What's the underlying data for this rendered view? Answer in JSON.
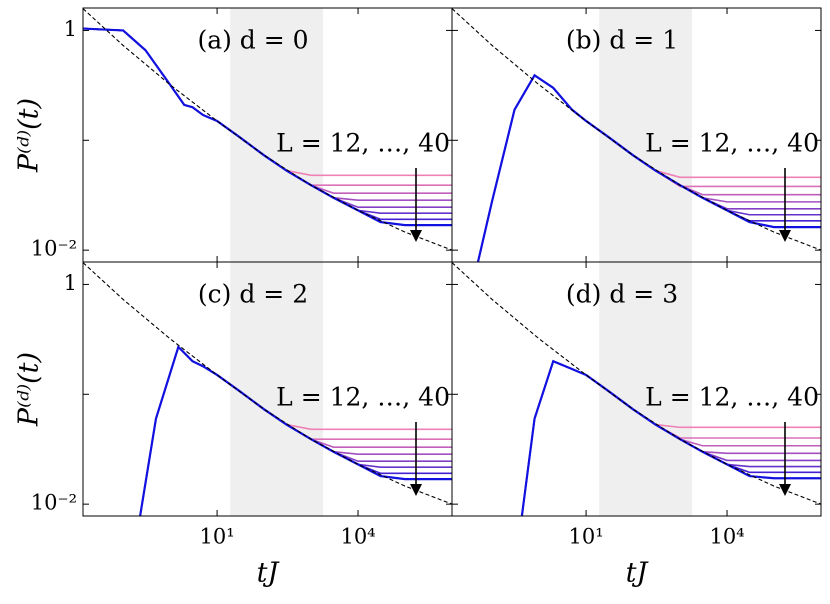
{
  "chart_data": [
    {
      "type": "line",
      "title": "(a) d = 0",
      "annotation": "L = 12, …, 40",
      "ylabel": "P⁽ᵈ⁾(t)",
      "log_x": true,
      "log_y": true,
      "xlim": [
        0.014,
        1000000
      ],
      "ylim": [
        0.0078,
        1.6
      ],
      "xticks": [
        {
          "value": 10,
          "label": null
        },
        {
          "value": 10000,
          "label": null
        }
      ],
      "yticks": [
        1,
        {
          "value": 0.1,
          "label": null
        },
        {
          "value": 0.01,
          "label": "10⁻²"
        }
      ],
      "shade": [
        19,
        1800
      ],
      "shade_color": "#efefef",
      "reference": {
        "x": [
          0.014,
          0.1,
          1,
          10,
          100,
          1000,
          10000,
          100000,
          1000000
        ],
        "values": [
          1.58,
          0.73,
          0.32,
          0.15,
          0.073,
          0.039,
          0.023,
          0.0146,
          0.01
        ],
        "color": "#000000"
      },
      "x": [
        0.014,
        0.1,
        0.3,
        1,
        2,
        3,
        5,
        10,
        30,
        100,
        300,
        1000,
        3000,
        10000,
        30000,
        100000,
        1000000
      ],
      "series": [
        {
          "color": "#ee82b4",
          "values": [
            1.04,
            1.0,
            0.66,
            0.32,
            0.21,
            0.2,
            0.17,
            0.15,
            0.107,
            0.073,
            0.053,
            0.048,
            0.048,
            0.048,
            0.048,
            0.048,
            0.048
          ]
        },
        {
          "color": "#dc70b8",
          "values": [
            1.04,
            1.0,
            0.66,
            0.32,
            0.21,
            0.2,
            0.17,
            0.15,
            0.107,
            0.073,
            0.053,
            0.039,
            0.039,
            0.039,
            0.039,
            0.039,
            0.039
          ]
        },
        {
          "color": "#c05fbb",
          "values": [
            1.04,
            1.0,
            0.66,
            0.32,
            0.21,
            0.2,
            0.17,
            0.15,
            0.107,
            0.073,
            0.053,
            0.039,
            0.033,
            0.033,
            0.033,
            0.033,
            0.033
          ]
        },
        {
          "color": "#a34fc0",
          "values": [
            1.04,
            1.0,
            0.66,
            0.32,
            0.21,
            0.2,
            0.17,
            0.15,
            0.107,
            0.073,
            0.053,
            0.039,
            0.03,
            0.0285,
            0.0285,
            0.0285,
            0.0285
          ]
        },
        {
          "color": "#8540c6",
          "values": [
            1.04,
            1.0,
            0.66,
            0.32,
            0.21,
            0.2,
            0.17,
            0.15,
            0.107,
            0.073,
            0.053,
            0.039,
            0.03,
            0.0246,
            0.0246,
            0.0246,
            0.0246
          ]
        },
        {
          "color": "#6631cc",
          "values": [
            1.04,
            1.0,
            0.66,
            0.32,
            0.21,
            0.2,
            0.17,
            0.15,
            0.107,
            0.073,
            0.053,
            0.039,
            0.03,
            0.023,
            0.0217,
            0.0217,
            0.0217
          ]
        },
        {
          "color": "#4422d4",
          "values": [
            1.04,
            1.0,
            0.66,
            0.32,
            0.21,
            0.2,
            0.17,
            0.15,
            0.107,
            0.073,
            0.053,
            0.039,
            0.03,
            0.023,
            0.0191,
            0.0191,
            0.0191
          ]
        },
        {
          "color": "#1212e0",
          "values": [
            1.04,
            1.0,
            0.66,
            0.32,
            0.21,
            0.2,
            0.17,
            0.15,
            0.107,
            0.073,
            0.053,
            0.039,
            0.03,
            0.023,
            0.018,
            0.0169,
            0.0169
          ]
        }
      ]
    },
    {
      "type": "line",
      "title": "(b) d = 1",
      "annotation": "L = 12, …, 40",
      "log_x": true,
      "log_y": true,
      "xlim": [
        0.014,
        1000000
      ],
      "ylim": [
        0.0078,
        1.6
      ],
      "xticks": [
        {
          "value": 10,
          "label": null
        },
        {
          "value": 10000,
          "label": null
        }
      ],
      "yticks": [
        {
          "value": 1,
          "label": null
        },
        {
          "value": 0.1,
          "label": null
        },
        {
          "value": 0.01,
          "label": null
        }
      ],
      "shade": [
        19,
        1800
      ],
      "shade_color": "#efefef",
      "reference": {
        "x": [
          0.014,
          0.1,
          1,
          10,
          100,
          1000,
          10000,
          100000,
          1000000
        ],
        "values": [
          1.58,
          0.73,
          0.32,
          0.15,
          0.073,
          0.039,
          0.023,
          0.0146,
          0.01
        ],
        "color": "#000000"
      },
      "x": [
        0.05,
        0.1,
        0.3,
        0.8,
        2,
        5,
        10,
        30,
        100,
        300,
        1000,
        3000,
        10000,
        30000,
        100000,
        1000000
      ],
      "series": [
        {
          "color": "#ee82b4",
          "values": [
            0.0078,
            0.028,
            0.19,
            0.39,
            0.3,
            0.19,
            0.15,
            0.107,
            0.073,
            0.053,
            0.046,
            0.046,
            0.046,
            0.046,
            0.046,
            0.046
          ]
        },
        {
          "color": "#dc70b8",
          "values": [
            0.0078,
            0.028,
            0.19,
            0.39,
            0.3,
            0.19,
            0.15,
            0.107,
            0.073,
            0.053,
            0.038,
            0.038,
            0.038,
            0.038,
            0.038,
            0.038
          ]
        },
        {
          "color": "#c05fbb",
          "values": [
            0.0078,
            0.028,
            0.19,
            0.39,
            0.3,
            0.19,
            0.15,
            0.107,
            0.073,
            0.053,
            0.039,
            0.032,
            0.032,
            0.032,
            0.032,
            0.032
          ]
        },
        {
          "color": "#a34fc0",
          "values": [
            0.0078,
            0.028,
            0.19,
            0.39,
            0.3,
            0.19,
            0.15,
            0.107,
            0.073,
            0.053,
            0.039,
            0.03,
            0.0275,
            0.0275,
            0.0275,
            0.0275
          ]
        },
        {
          "color": "#8540c6",
          "values": [
            0.0078,
            0.028,
            0.19,
            0.39,
            0.3,
            0.19,
            0.15,
            0.107,
            0.073,
            0.053,
            0.039,
            0.03,
            0.0238,
            0.0238,
            0.0238,
            0.0238
          ]
        },
        {
          "color": "#6631cc",
          "values": [
            0.0078,
            0.028,
            0.19,
            0.39,
            0.3,
            0.19,
            0.15,
            0.107,
            0.073,
            0.053,
            0.039,
            0.03,
            0.023,
            0.021,
            0.021,
            0.021
          ]
        },
        {
          "color": "#4422d4",
          "values": [
            0.0078,
            0.028,
            0.19,
            0.39,
            0.3,
            0.19,
            0.15,
            0.107,
            0.073,
            0.053,
            0.039,
            0.03,
            0.023,
            0.0185,
            0.0185,
            0.0185
          ]
        },
        {
          "color": "#1212e0",
          "values": [
            0.0078,
            0.028,
            0.19,
            0.39,
            0.3,
            0.19,
            0.15,
            0.107,
            0.073,
            0.053,
            0.039,
            0.03,
            0.023,
            0.018,
            0.0162,
            0.0162
          ]
        }
      ]
    },
    {
      "type": "line",
      "title": "(c) d = 2",
      "annotation": "L = 12, …, 40",
      "ylabel": "P⁽ᵈ⁾(t)",
      "xlabel": "tJ",
      "log_x": true,
      "log_y": true,
      "xlim": [
        0.014,
        1000000
      ],
      "ylim": [
        0.0078,
        1.6
      ],
      "xticks": [
        {
          "value": 10,
          "label": "10¹"
        },
        {
          "value": 10000,
          "label": "10⁴"
        }
      ],
      "yticks": [
        1,
        {
          "value": 0.1,
          "label": null
        },
        {
          "value": 0.01,
          "label": "10⁻²"
        }
      ],
      "shade": [
        19,
        1800
      ],
      "shade_color": "#efefef",
      "reference": {
        "x": [
          0.014,
          0.1,
          1,
          10,
          100,
          1000,
          10000,
          100000,
          1000000
        ],
        "values": [
          1.58,
          0.73,
          0.32,
          0.15,
          0.073,
          0.039,
          0.023,
          0.0146,
          0.01
        ],
        "color": "#000000"
      },
      "x": [
        0.23,
        0.5,
        1.5,
        3,
        5,
        10,
        30,
        100,
        300,
        1000,
        3000,
        10000,
        30000,
        100000,
        1000000
      ],
      "series": [
        {
          "color": "#ee82b4",
          "values": [
            0.0078,
            0.06,
            0.27,
            0.2,
            0.18,
            0.15,
            0.107,
            0.073,
            0.053,
            0.048,
            0.048,
            0.048,
            0.048,
            0.048,
            0.048
          ]
        },
        {
          "color": "#dc70b8",
          "values": [
            0.0078,
            0.06,
            0.27,
            0.2,
            0.18,
            0.15,
            0.107,
            0.073,
            0.053,
            0.039,
            0.039,
            0.039,
            0.039,
            0.039,
            0.039
          ]
        },
        {
          "color": "#c05fbb",
          "values": [
            0.0078,
            0.06,
            0.27,
            0.2,
            0.18,
            0.15,
            0.107,
            0.073,
            0.053,
            0.039,
            0.033,
            0.033,
            0.033,
            0.033,
            0.033
          ]
        },
        {
          "color": "#a34fc0",
          "values": [
            0.0078,
            0.06,
            0.27,
            0.2,
            0.18,
            0.15,
            0.107,
            0.073,
            0.053,
            0.039,
            0.03,
            0.0285,
            0.0285,
            0.0285,
            0.0285
          ]
        },
        {
          "color": "#8540c6",
          "values": [
            0.0078,
            0.06,
            0.27,
            0.2,
            0.18,
            0.15,
            0.107,
            0.073,
            0.053,
            0.039,
            0.03,
            0.0246,
            0.0246,
            0.0246,
            0.0246
          ]
        },
        {
          "color": "#6631cc",
          "values": [
            0.0078,
            0.06,
            0.27,
            0.2,
            0.18,
            0.15,
            0.107,
            0.073,
            0.053,
            0.039,
            0.03,
            0.023,
            0.0217,
            0.0217,
            0.0217
          ]
        },
        {
          "color": "#4422d4",
          "values": [
            0.0078,
            0.06,
            0.27,
            0.2,
            0.18,
            0.15,
            0.107,
            0.073,
            0.053,
            0.039,
            0.03,
            0.023,
            0.0191,
            0.0191,
            0.0191
          ]
        },
        {
          "color": "#1212e0",
          "values": [
            0.0078,
            0.06,
            0.27,
            0.2,
            0.18,
            0.15,
            0.107,
            0.073,
            0.053,
            0.039,
            0.03,
            0.023,
            0.018,
            0.0169,
            0.0169
          ]
        }
      ]
    },
    {
      "type": "line",
      "title": "(d) d = 3",
      "annotation": "L = 12, …, 40",
      "xlabel": "tJ",
      "log_x": true,
      "log_y": true,
      "xlim": [
        0.014,
        1000000
      ],
      "ylim": [
        0.0078,
        1.6
      ],
      "xticks": [
        {
          "value": 10,
          "label": "10¹"
        },
        {
          "value": 10000,
          "label": "10⁴"
        }
      ],
      "yticks": [
        {
          "value": 1,
          "label": null
        },
        {
          "value": 0.1,
          "label": null
        },
        {
          "value": 0.01,
          "label": null
        }
      ],
      "shade": [
        19,
        1800
      ],
      "shade_color": "#efefef",
      "reference": {
        "x": [
          0.014,
          0.1,
          1,
          10,
          100,
          1000,
          10000,
          100000,
          1000000
        ],
        "values": [
          1.58,
          0.73,
          0.32,
          0.15,
          0.073,
          0.039,
          0.023,
          0.0146,
          0.01
        ],
        "color": "#000000"
      },
      "x": [
        0.43,
        0.8,
        2,
        5,
        10,
        30,
        100,
        300,
        1000,
        3000,
        10000,
        30000,
        100000,
        1000000
      ],
      "series": [
        {
          "color": "#ee82b4",
          "values": [
            0.0078,
            0.06,
            0.2,
            0.17,
            0.15,
            0.107,
            0.073,
            0.053,
            0.05,
            0.05,
            0.05,
            0.05,
            0.05,
            0.05
          ]
        },
        {
          "color": "#dc70b8",
          "values": [
            0.0078,
            0.06,
            0.2,
            0.17,
            0.15,
            0.107,
            0.073,
            0.053,
            0.04,
            0.04,
            0.04,
            0.04,
            0.04,
            0.04
          ]
        },
        {
          "color": "#c05fbb",
          "values": [
            0.0078,
            0.06,
            0.2,
            0.17,
            0.15,
            0.107,
            0.073,
            0.053,
            0.039,
            0.034,
            0.034,
            0.034,
            0.034,
            0.034
          ]
        },
        {
          "color": "#a34fc0",
          "values": [
            0.0078,
            0.06,
            0.2,
            0.17,
            0.15,
            0.107,
            0.073,
            0.053,
            0.039,
            0.03,
            0.029,
            0.029,
            0.029,
            0.029
          ]
        },
        {
          "color": "#8540c6",
          "values": [
            0.0078,
            0.06,
            0.2,
            0.17,
            0.15,
            0.107,
            0.073,
            0.053,
            0.039,
            0.03,
            0.025,
            0.025,
            0.025,
            0.025
          ]
        },
        {
          "color": "#6631cc",
          "values": [
            0.0078,
            0.06,
            0.2,
            0.17,
            0.15,
            0.107,
            0.073,
            0.053,
            0.039,
            0.03,
            0.023,
            0.022,
            0.022,
            0.022
          ]
        },
        {
          "color": "#4422d4",
          "values": [
            0.0078,
            0.06,
            0.2,
            0.17,
            0.15,
            0.107,
            0.073,
            0.053,
            0.039,
            0.03,
            0.023,
            0.0195,
            0.0195,
            0.0195
          ]
        },
        {
          "color": "#1212e0",
          "values": [
            0.0078,
            0.06,
            0.2,
            0.17,
            0.15,
            0.107,
            0.073,
            0.053,
            0.039,
            0.03,
            0.023,
            0.018,
            0.0172,
            0.0172
          ]
        }
      ]
    }
  ]
}
